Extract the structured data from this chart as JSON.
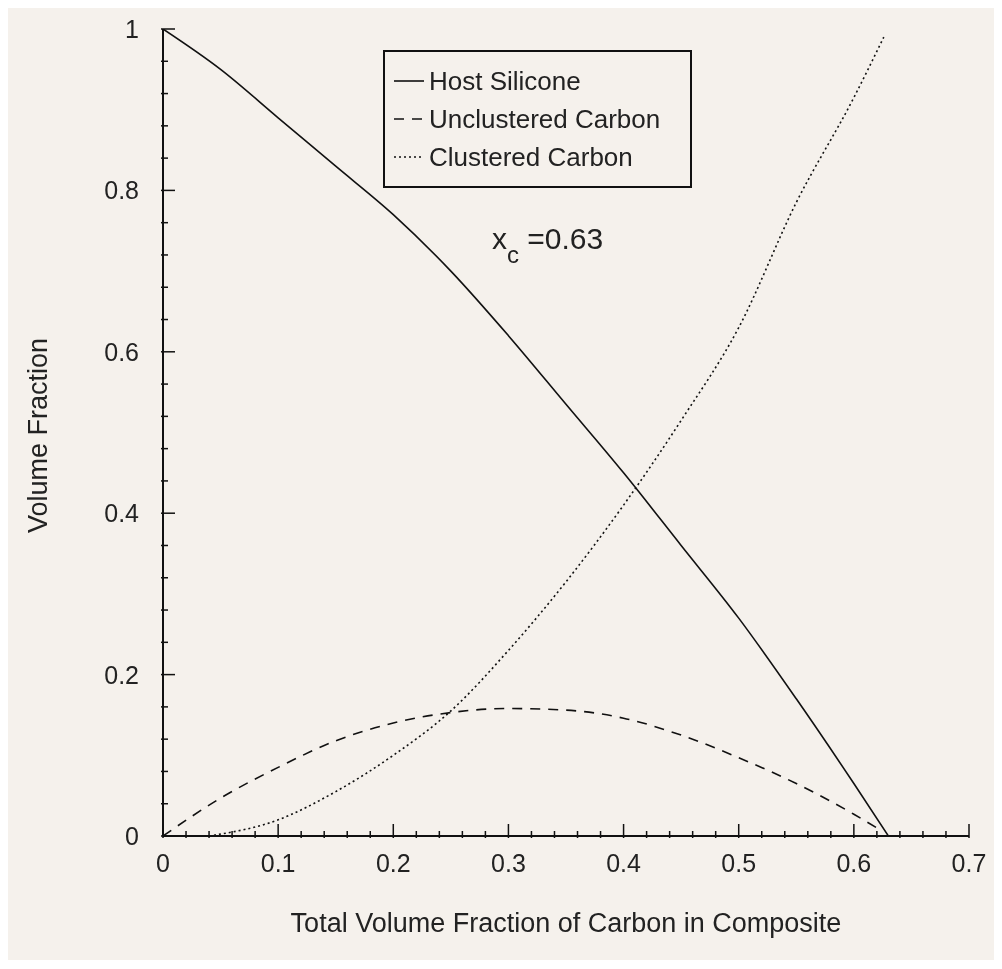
{
  "chart_data": {
    "type": "line",
    "xlabel": "Total Volume Fraction of Carbon in Composite",
    "ylabel": "Volume Fraction",
    "annotations": [
      "x$_{c}$ =0.63"
    ],
    "xlim": [
      0,
      0.7
    ],
    "ylim": [
      0,
      1
    ],
    "xticks": [
      0,
      {
        "value": 0.02,
        "label": null
      },
      {
        "value": 0.04,
        "label": null
      },
      {
        "value": 0.06,
        "label": null
      },
      {
        "value": 0.08,
        "label": null
      },
      0.1,
      {
        "value": 0.12,
        "label": null
      },
      {
        "value": 0.14,
        "label": null
      },
      {
        "value": 0.16,
        "label": null
      },
      {
        "value": 0.18,
        "label": null
      },
      0.2,
      {
        "value": 0.22,
        "label": null
      },
      {
        "value": 0.24,
        "label": null
      },
      {
        "value": 0.26,
        "label": null
      },
      {
        "value": 0.28,
        "label": null
      },
      0.3,
      {
        "value": 0.32,
        "label": null
      },
      {
        "value": 0.34,
        "label": null
      },
      {
        "value": 0.36,
        "label": null
      },
      {
        "value": 0.38,
        "label": null
      },
      0.4,
      {
        "value": 0.42,
        "label": null
      },
      {
        "value": 0.44,
        "label": null
      },
      {
        "value": 0.46,
        "label": null
      },
      {
        "value": 0.48,
        "label": null
      },
      0.5,
      {
        "value": 0.52,
        "label": null
      },
      {
        "value": 0.54,
        "label": null
      },
      {
        "value": 0.56,
        "label": null
      },
      {
        "value": 0.58,
        "label": null
      },
      0.6,
      {
        "value": 0.62,
        "label": null
      },
      {
        "value": 0.64,
        "label": null
      },
      {
        "value": 0.66,
        "label": null
      },
      {
        "value": 0.68,
        "label": null
      },
      0.7
    ],
    "yticks": [
      0,
      {
        "value": 0.04,
        "label": null
      },
      {
        "value": 0.08,
        "label": null
      },
      {
        "value": 0.12,
        "label": null
      },
      {
        "value": 0.16,
        "label": null
      },
      0.2,
      {
        "value": 0.24,
        "label": null
      },
      {
        "value": 0.28,
        "label": null
      },
      {
        "value": 0.32,
        "label": null
      },
      {
        "value": 0.36,
        "label": null
      },
      0.4,
      {
        "value": 0.44,
        "label": null
      },
      {
        "value": 0.48,
        "label": null
      },
      {
        "value": 0.52,
        "label": null
      },
      {
        "value": 0.56,
        "label": null
      },
      0.6,
      {
        "value": 0.64,
        "label": null
      },
      {
        "value": 0.68,
        "label": null
      },
      {
        "value": 0.72,
        "label": null
      },
      {
        "value": 0.76,
        "label": null
      },
      0.8,
      {
        "value": 0.84,
        "label": null
      },
      {
        "value": 0.88,
        "label": null
      },
      {
        "value": 0.92,
        "label": null
      },
      {
        "value": 0.96,
        "label": null
      },
      1
    ],
    "grid": false,
    "legend": "top",
    "marker": "none",
    "series": [
      {
        "name": "Host Silicone",
        "color": "#111111",
        "line_style": "solid",
        "x": [
          0,
          0.05,
          0.1,
          0.15,
          0.2,
          0.25,
          0.3,
          0.35,
          0.4,
          0.45,
          0.5,
          0.55,
          0.6,
          0.63
        ],
        "values": [
          1,
          0.95,
          0.89,
          0.83,
          0.77,
          0.7,
          0.62,
          0.535,
          0.45,
          0.36,
          0.27,
          0.17,
          0.065,
          0
        ]
      },
      {
        "name": "Unclustered Carbon",
        "color": "#111111",
        "line_style": "dashed",
        "x": [
          0,
          0.05,
          0.1,
          0.15,
          0.2,
          0.25,
          0.3,
          0.35,
          0.4,
          0.45,
          0.5,
          0.55,
          0.6,
          0.62
        ],
        "values": [
          0,
          0.047,
          0.085,
          0.118,
          0.14,
          0.153,
          0.158,
          0.156,
          0.146,
          0.125,
          0.097,
          0.065,
          0.027,
          0.01
        ]
      },
      {
        "name": "Clustered Carbon",
        "color": "#111111",
        "line_style": "dotted",
        "x": [
          0.04,
          0.1,
          0.15,
          0.2,
          0.25,
          0.3,
          0.35,
          0.4,
          0.45,
          0.5,
          0.55,
          0.6,
          0.626
        ],
        "values": [
          0,
          0.02,
          0.055,
          0.1,
          0.155,
          0.23,
          0.315,
          0.41,
          0.515,
          0.63,
          0.785,
          0.915,
          0.99
        ]
      }
    ]
  }
}
